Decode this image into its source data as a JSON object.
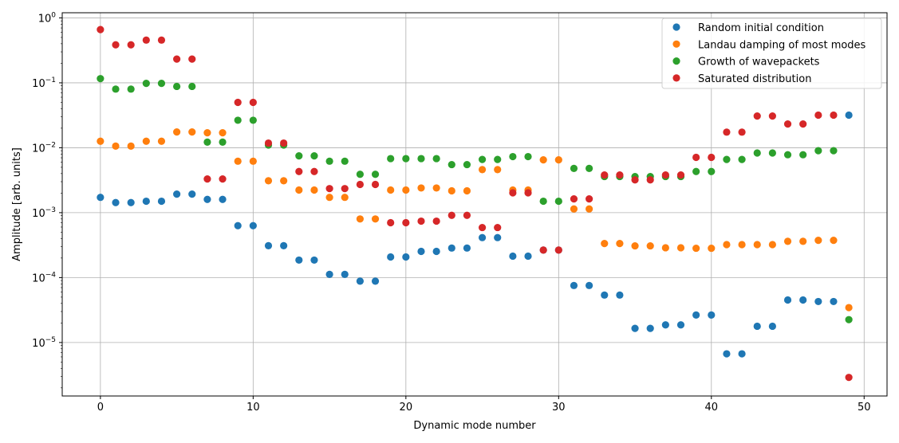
{
  "chart_data": {
    "type": "scatter",
    "xlabel": "Dynamic mode number",
    "ylabel": "Amplitude [arb. units]",
    "yscale": "log",
    "xlim": [
      -2.5,
      51.5
    ],
    "ylim": [
      1.5e-06,
      1.2
    ],
    "xticks": [
      0,
      10,
      20,
      30,
      40,
      50
    ],
    "yticks": [
      {
        "value": 1e-05,
        "base": "10",
        "exp": "−5"
      },
      {
        "value": 0.0001,
        "base": "10",
        "exp": "−4"
      },
      {
        "value": 0.001,
        "base": "10",
        "exp": "−3"
      },
      {
        "value": 0.01,
        "base": "10",
        "exp": "−2"
      },
      {
        "value": 0.1,
        "base": "10",
        "exp": "−1"
      },
      {
        "value": 1,
        "base": "10",
        "exp": "0"
      }
    ],
    "grid": true,
    "legend_position": "top-right",
    "series": [
      {
        "name": "Random initial condition",
        "color": "#1f77b4",
        "x": [
          0,
          1,
          2,
          3,
          4,
          5,
          6,
          7,
          8,
          9,
          10,
          11,
          12,
          13,
          14,
          15,
          16,
          17,
          18,
          19,
          20,
          21,
          22,
          23,
          24,
          25,
          26,
          27,
          28,
          29,
          30,
          31,
          32,
          33,
          34,
          35,
          36,
          37,
          38,
          39,
          40,
          41,
          42,
          43,
          44,
          45,
          46,
          47,
          48,
          49
        ],
        "y": [
          0.00172,
          0.00143,
          0.00143,
          0.0015,
          0.0015,
          0.00193,
          0.00193,
          0.0016,
          0.0016,
          0.00063,
          0.00063,
          0.00031,
          0.00031,
          0.000186,
          0.000186,
          0.000112,
          0.000112,
          8.8e-05,
          8.8e-05,
          0.000208,
          0.000208,
          0.000253,
          0.000253,
          0.000285,
          0.000285,
          0.000413,
          0.000413,
          0.000214,
          0.000214,
          0.000265,
          0.000265,
          7.55e-05,
          7.55e-05,
          5.38e-05,
          5.38e-05,
          1.65e-05,
          1.65e-05,
          1.87e-05,
          1.87e-05,
          2.65e-05,
          2.65e-05,
          6.7e-06,
          6.7e-06,
          1.78e-05,
          1.78e-05,
          4.52e-05,
          4.52e-05,
          4.28e-05,
          4.28e-05,
          0.0318
        ]
      },
      {
        "name": "Landau damping of most modes",
        "color": "#ff7f0e",
        "x": [
          0,
          1,
          2,
          3,
          4,
          5,
          6,
          7,
          8,
          9,
          10,
          11,
          12,
          13,
          14,
          15,
          16,
          17,
          18,
          19,
          20,
          21,
          22,
          23,
          24,
          25,
          26,
          27,
          28,
          29,
          30,
          31,
          32,
          33,
          34,
          35,
          36,
          37,
          38,
          39,
          40,
          41,
          42,
          43,
          44,
          45,
          46,
          47,
          48,
          49
        ],
        "y": [
          0.0126,
          0.0106,
          0.0106,
          0.0126,
          0.0126,
          0.0175,
          0.0175,
          0.017,
          0.017,
          0.0062,
          0.0062,
          0.0031,
          0.0031,
          0.00223,
          0.00223,
          0.00172,
          0.00172,
          0.0008,
          0.0008,
          0.00223,
          0.00223,
          0.0024,
          0.0024,
          0.00217,
          0.00217,
          0.0046,
          0.0046,
          0.00223,
          0.00223,
          0.0065,
          0.0065,
          0.00114,
          0.00114,
          0.000335,
          0.000335,
          0.000308,
          0.000308,
          0.000288,
          0.000288,
          0.000283,
          0.000283,
          0.000322,
          0.000322,
          0.000322,
          0.000322,
          0.000362,
          0.000362,
          0.000375,
          0.000375,
          3.45e-05
        ]
      },
      {
        "name": "Growth of wavepackets",
        "color": "#2ca02c",
        "x": [
          0,
          1,
          2,
          3,
          4,
          5,
          6,
          7,
          8,
          9,
          10,
          11,
          12,
          13,
          14,
          15,
          16,
          17,
          18,
          19,
          20,
          21,
          22,
          23,
          24,
          25,
          26,
          27,
          28,
          29,
          30,
          31,
          32,
          33,
          34,
          35,
          36,
          37,
          38,
          39,
          40,
          41,
          42,
          43,
          44,
          45,
          46,
          47,
          48,
          49
        ],
        "y": [
          0.116,
          0.08,
          0.08,
          0.098,
          0.098,
          0.088,
          0.088,
          0.0122,
          0.0122,
          0.0265,
          0.0265,
          0.011,
          0.011,
          0.0075,
          0.0075,
          0.0062,
          0.0062,
          0.0039,
          0.0039,
          0.0068,
          0.0068,
          0.0068,
          0.0068,
          0.0055,
          0.0055,
          0.0066,
          0.0066,
          0.0073,
          0.0073,
          0.0015,
          0.0015,
          0.0048,
          0.0048,
          0.0036,
          0.0036,
          0.0036,
          0.0036,
          0.0036,
          0.0036,
          0.0043,
          0.0043,
          0.0066,
          0.0066,
          0.0083,
          0.0083,
          0.0078,
          0.0078,
          0.009,
          0.009,
          2.25e-05
        ]
      },
      {
        "name": "Saturated distribution",
        "color": "#d62728",
        "x": [
          0,
          1,
          2,
          3,
          4,
          5,
          6,
          7,
          8,
          9,
          10,
          11,
          12,
          13,
          14,
          15,
          16,
          17,
          18,
          19,
          20,
          21,
          22,
          23,
          24,
          25,
          26,
          27,
          28,
          29,
          30,
          31,
          32,
          33,
          34,
          35,
          36,
          37,
          38,
          39,
          40,
          41,
          42,
          43,
          44,
          45,
          46,
          47,
          48,
          49
        ],
        "y": [
          0.66,
          0.385,
          0.385,
          0.455,
          0.455,
          0.232,
          0.232,
          0.0033,
          0.0033,
          0.05,
          0.05,
          0.0118,
          0.0118,
          0.0043,
          0.0043,
          0.00235,
          0.00235,
          0.00272,
          0.00272,
          0.0007,
          0.0007,
          0.00074,
          0.00074,
          0.00091,
          0.00091,
          0.00059,
          0.00059,
          0.00202,
          0.00202,
          0.000265,
          0.000265,
          0.00163,
          0.00163,
          0.0038,
          0.0038,
          0.0032,
          0.0032,
          0.0038,
          0.0038,
          0.0071,
          0.0071,
          0.0174,
          0.0174,
          0.0308,
          0.0308,
          0.0232,
          0.0232,
          0.0318,
          0.0318,
          2.9e-06
        ]
      }
    ]
  }
}
